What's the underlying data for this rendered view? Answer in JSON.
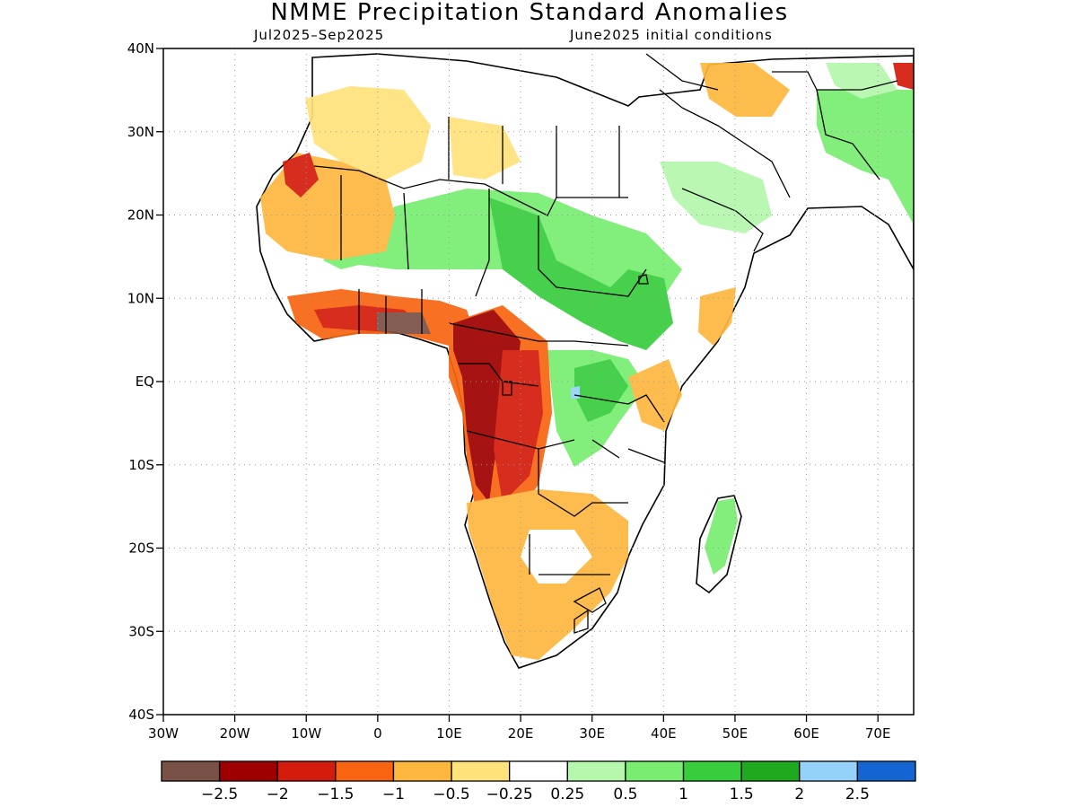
{
  "title": "NMME Precipitation Standard Anomalies",
  "period": "Jul2025–Sep2025",
  "initial_conditions": "June2025 initial conditions",
  "map": {
    "lat_range": [
      -40,
      40
    ],
    "lon_range": [
      -30,
      75
    ],
    "lat_ticks": [
      "40N",
      "30N",
      "20N",
      "10N",
      "EQ",
      "10S",
      "20S",
      "30S",
      "40S"
    ],
    "lon_ticks": [
      "30W",
      "20W",
      "10W",
      "0",
      "10E",
      "20E",
      "30E",
      "40E",
      "50E",
      "60E",
      "70E"
    ],
    "gridlines": "dotted"
  },
  "colorbar": {
    "colors": [
      "#7a5146",
      "#9e0000",
      "#d41c0c",
      "#f8640f",
      "#fdb73e",
      "#fee27a",
      "#ffffff",
      "#b4f7ad",
      "#78ed70",
      "#38cd3c",
      "#1ea91e",
      "#95d2f9",
      "#1464d2"
    ],
    "labels": [
      "−2.5",
      "−2",
      "−1.5",
      "−1",
      "−0.5",
      "−0.25",
      "0.25",
      "0.5",
      "1",
      "1.5",
      "2",
      "2.5"
    ]
  }
}
